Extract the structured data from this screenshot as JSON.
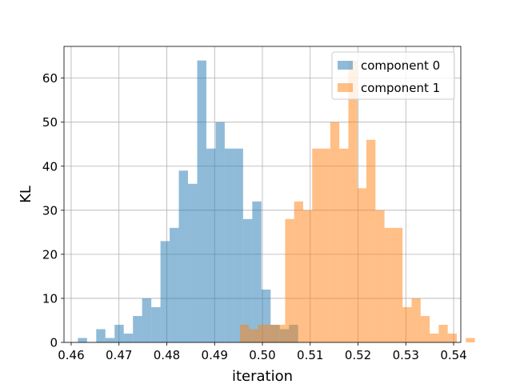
{
  "chart_data": {
    "type": "bar",
    "subtype": "histogram-overlay",
    "xlabel": "iteration",
    "ylabel": "KL",
    "xlim": [
      0.4585,
      0.5415
    ],
    "ylim": [
      0,
      67.2
    ],
    "xticks": [
      0.46,
      0.47,
      0.48,
      0.49,
      0.5,
      0.51,
      0.52,
      0.53,
      0.54
    ],
    "xtick_labels": [
      "0.46",
      "0.47",
      "0.48",
      "0.49",
      "0.50",
      "0.51",
      "0.52",
      "0.53",
      "0.54"
    ],
    "yticks": [
      0,
      10,
      20,
      30,
      40,
      50,
      60
    ],
    "ytick_labels": [
      "0",
      "10",
      "20",
      "30",
      "40",
      "50",
      "60"
    ],
    "grid": true,
    "legend": "top-right",
    "series": [
      {
        "name": "component 0",
        "color": "#1f77b4",
        "alpha": 0.5,
        "bin_start": 0.4614,
        "bin_width": 0.00192,
        "counts": [
          1,
          0,
          3,
          1,
          4,
          2,
          6,
          10,
          8,
          23,
          26,
          39,
          36,
          64,
          44,
          50,
          44,
          44,
          28,
          32,
          12,
          4,
          3,
          4
        ]
      },
      {
        "name": "component 1",
        "color": "#ff7f0e",
        "alpha": 0.5,
        "bin_start": 0.4953,
        "bin_width": 0.00189,
        "counts": [
          4,
          3,
          4,
          4,
          4,
          28,
          32,
          30,
          44,
          44,
          50,
          44,
          64,
          35,
          46,
          30,
          26,
          26,
          8,
          10,
          6,
          2,
          4,
          2,
          0,
          1
        ]
      }
    ]
  }
}
